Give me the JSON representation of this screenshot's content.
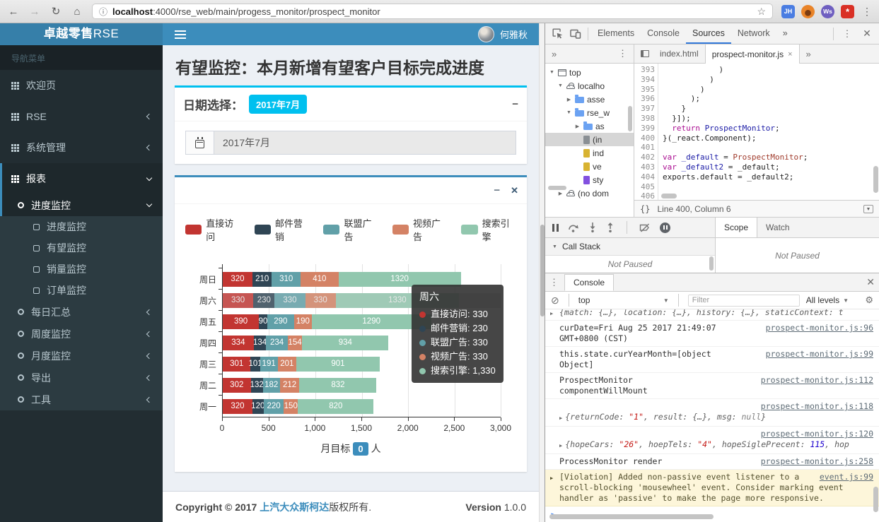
{
  "icons": {
    "back": "←",
    "forward": "→",
    "reload": "↻",
    "home": "⌂",
    "info": "ⓘ",
    "star": "☆",
    "dots": "⋮",
    "more": "»",
    "close": "×",
    "tri_down": "▼",
    "tri_right": "▶",
    "minus": "−",
    "x": "✕",
    "brace": "{}",
    "ban": "⊘",
    "gear": "⚙",
    "caret": "▼",
    "arrow": "▶",
    "asterisk": "*"
  },
  "browser": {
    "url_host": "localhost",
    "url_path": ":4000/rse_web/main/progess_monitor/prospect_monitor",
    "ext_jh": "JH",
    "ext_ws": "Ws"
  },
  "navbar": {
    "brand_bold": "卓越零售",
    "brand_light": "RSE",
    "user_name": "何雅秋"
  },
  "sidebar": {
    "menu_label": "导航菜单",
    "items": [
      {
        "label": "欢迎页",
        "icon": "grid"
      },
      {
        "label": "RSE",
        "icon": "grid",
        "chevron": "left"
      },
      {
        "label": "系统管理",
        "icon": "grid",
        "chevron": "left"
      },
      {
        "label": "报表",
        "icon": "grid",
        "chevron": "down",
        "active": true,
        "children": [
          {
            "label": "进度监控",
            "icon": "ring",
            "chevron": "down",
            "active": true,
            "children": [
              {
                "label": "进度监控",
                "icon": "sq"
              },
              {
                "label": "有望监控",
                "icon": "sq"
              },
              {
                "label": "销量监控",
                "icon": "sq"
              },
              {
                "label": "订单监控",
                "icon": "sq"
              }
            ]
          },
          {
            "label": "每日汇总",
            "icon": "ring",
            "chevron": "left"
          },
          {
            "label": "周度监控",
            "icon": "ring",
            "chevron": "left"
          },
          {
            "label": "月度监控",
            "icon": "ring",
            "chevron": "left"
          },
          {
            "label": "导出",
            "icon": "ring",
            "chevron": "left"
          },
          {
            "label": "工具",
            "icon": "ring",
            "chevron": "left"
          }
        ]
      }
    ]
  },
  "page": {
    "title": "有望监控：本月新增有望客户目标完成进度",
    "date_box": {
      "label": "日期选择：",
      "badge": "2017年7月",
      "value": "2017年7月"
    },
    "footer": {
      "prefix": "Copyright © 2017 ",
      "company": "上汽大众斯柯达",
      "suffix": "版权所有.",
      "version_label": "Version",
      "version_value": "1.0.0"
    }
  },
  "chart_data": {
    "type": "bar",
    "orientation": "horizontal",
    "stacked": true,
    "grid": true,
    "legend_position": "top",
    "categories": [
      "周日",
      "周六",
      "周五",
      "周四",
      "周三",
      "周二",
      "周一"
    ],
    "series": [
      {
        "name": "直接访问",
        "color": "#c23531",
        "values": [
          320,
          330,
          390,
          334,
          301,
          302,
          320
        ]
      },
      {
        "name": "邮件营销",
        "color": "#2f4554",
        "values": [
          210,
          230,
          90,
          134,
          101,
          132,
          120
        ]
      },
      {
        "name": "联盟广告",
        "color": "#61a0a8",
        "values": [
          310,
          330,
          290,
          234,
          191,
          182,
          220
        ]
      },
      {
        "name": "视频广告",
        "color": "#d48265",
        "values": [
          410,
          330,
          190,
          154,
          201,
          212,
          150
        ]
      },
      {
        "name": "搜索引擎",
        "color": "#91c7ae",
        "values": [
          1320,
          1330,
          1290,
          934,
          901,
          832,
          820
        ]
      }
    ],
    "xlim": [
      0,
      3000
    ],
    "x_ticks": [
      "0",
      "500",
      "1,000",
      "1,500",
      "2,000",
      "2,500",
      "3,000"
    ],
    "highlighted_category": "周六",
    "tooltip": {
      "title": "周六",
      "rows": [
        {
          "name": "直接访问",
          "value": "330",
          "color": "#c23531"
        },
        {
          "name": "邮件营销",
          "value": "230",
          "color": "#2f4554"
        },
        {
          "name": "联盟广告",
          "value": "330",
          "color": "#61a0a8"
        },
        {
          "name": "视频广告",
          "value": "330",
          "color": "#d48265"
        },
        {
          "name": "搜索引擎",
          "value": "1,330",
          "color": "#91c7ae"
        }
      ]
    },
    "footnote_prefix": "月目标",
    "footnote_badge": "0",
    "footnote_suffix": "人"
  },
  "devtools": {
    "main_tabs": [
      {
        "label": "Elements"
      },
      {
        "label": "Console"
      },
      {
        "label": "Sources",
        "active": true
      },
      {
        "label": "Network"
      }
    ],
    "editor_tabs": [
      {
        "label": "index.html"
      },
      {
        "label": "prospect-monitor.js",
        "active": true,
        "closable": true
      }
    ],
    "tree": [
      {
        "label": "top",
        "icon": "frame",
        "depth": 0,
        "arrow": "down"
      },
      {
        "label": "localho",
        "icon": "cloud",
        "depth": 1,
        "arrow": "down"
      },
      {
        "label": "asse",
        "icon": "folder",
        "depth": 2,
        "arrow": "right"
      },
      {
        "label": "rse_w",
        "icon": "folder",
        "depth": 2,
        "arrow": "down"
      },
      {
        "label": "as",
        "icon": "folder",
        "depth": 3,
        "arrow": "right"
      },
      {
        "label": "(in",
        "icon": "file-gray",
        "depth": 3,
        "selected": true
      },
      {
        "label": "ind",
        "icon": "file-yellow",
        "depth": 3
      },
      {
        "label": "ve",
        "icon": "file-yellow",
        "depth": 3
      },
      {
        "label": "sty",
        "icon": "file-purple",
        "depth": 3
      },
      {
        "label": "(no dom",
        "icon": "cloud",
        "depth": 1,
        "arrow": "right"
      }
    ],
    "code_lines": [
      {
        "n": "393",
        "parts": [
          {
            "t": "            )",
            "c": "p"
          }
        ]
      },
      {
        "n": "394",
        "parts": [
          {
            "t": "          )",
            "c": "p"
          }
        ]
      },
      {
        "n": "395",
        "parts": [
          {
            "t": "        )",
            "c": "p"
          }
        ]
      },
      {
        "n": "396",
        "parts": [
          {
            "t": "      );",
            "c": "p"
          }
        ]
      },
      {
        "n": "397",
        "parts": [
          {
            "t": "    }",
            "c": "p"
          }
        ]
      },
      {
        "n": "398",
        "parts": [
          {
            "t": "  }]);",
            "c": "p"
          }
        ]
      },
      {
        "n": "399",
        "parts": [
          {
            "t": "  ",
            "c": "p"
          },
          {
            "t": "return",
            "c": "k"
          },
          {
            "t": " ",
            "c": "p"
          },
          {
            "t": "ProspectMonitor",
            "c": "d"
          },
          {
            "t": ";",
            "c": "p"
          }
        ]
      },
      {
        "n": "400",
        "parts": [
          {
            "t": "}(_react.Component);",
            "c": "p"
          }
        ]
      },
      {
        "n": "401",
        "parts": []
      },
      {
        "n": "402",
        "parts": [
          {
            "t": "var",
            "c": "k"
          },
          {
            "t": " ",
            "c": "p"
          },
          {
            "t": "_default",
            "c": "d"
          },
          {
            "t": " = ",
            "c": "p"
          },
          {
            "t": "ProspectMonitor",
            "c": "r"
          },
          {
            "t": ";",
            "c": "p"
          }
        ]
      },
      {
        "n": "403",
        "parts": [
          {
            "t": "var",
            "c": "k"
          },
          {
            "t": " ",
            "c": "p"
          },
          {
            "t": "_default2",
            "c": "d"
          },
          {
            "t": " = _default;",
            "c": "p"
          }
        ]
      },
      {
        "n": "404",
        "parts": [
          {
            "t": "exports.default = _default2;",
            "c": "p"
          }
        ]
      },
      {
        "n": "405",
        "parts": []
      },
      {
        "n": "406",
        "parts": []
      }
    ],
    "status": {
      "line_info": "Line 400, Column 6"
    },
    "debugger": {
      "call_stack_label": "Call Stack",
      "call_stack_state": "Not Paused",
      "scope_tab": "Scope",
      "watch_tab": "Watch",
      "scope_state": "Not Paused"
    },
    "console": {
      "tab": "Console",
      "context": "top",
      "filter_placeholder": "Filter",
      "levels": "All levels",
      "prompt": ">",
      "rows": [
        {
          "kind": "preview",
          "arrow": true,
          "clip": true,
          "parts": [
            {
              "t": "{match: {…}, location: {…}, history: {…}, staticContext: t",
              "c": "obj"
            }
          ]
        },
        {
          "kind": "log",
          "text": "curDate=Fri Aug 25 2017 21:49:07\nGMT+0800 (CST)",
          "link": "prospect-monitor.js:96"
        },
        {
          "kind": "log",
          "text": "this.state.curYearMonth=[object\nObject]",
          "link": "prospect-monitor.js:99"
        },
        {
          "kind": "log",
          "text": "ProspectMonitor\ncomponentWillMount",
          "link": "prospect-monitor.js:112"
        },
        {
          "kind": "obj",
          "link": "prospect-monitor.js:118",
          "arrow": true,
          "parts": [
            {
              "t": "{returnCode: ",
              "c": "obj"
            },
            {
              "t": "\"1\"",
              "c": "str"
            },
            {
              "t": ", result: {…}, msg: ",
              "c": "obj"
            },
            {
              "t": "null",
              "c": "nul"
            },
            {
              "t": "}",
              "c": "obj"
            }
          ]
        },
        {
          "kind": "obj",
          "link": "prospect-monitor.js:120",
          "arrow": true,
          "parts": [
            {
              "t": "{hopeCars: ",
              "c": "obj"
            },
            {
              "t": "\"26\"",
              "c": "str"
            },
            {
              "t": ", hoepTels: ",
              "c": "obj"
            },
            {
              "t": "\"4\"",
              "c": "str"
            },
            {
              "t": ", hopeSiglePrecent: ",
              "c": "obj"
            },
            {
              "t": "115",
              "c": "num"
            },
            {
              "t": ", hop",
              "c": "obj"
            }
          ]
        },
        {
          "kind": "log",
          "text": "ProcessMonitor render",
          "link": "prospect-monitor.js:258"
        },
        {
          "kind": "warn",
          "arrow": true,
          "text": "[Violation] Added non-passive event listener to a scroll-blocking 'mousewheel' event. Consider marking event handler as 'passive' to make the page more responsive.",
          "link": "event.js:99"
        }
      ]
    }
  }
}
